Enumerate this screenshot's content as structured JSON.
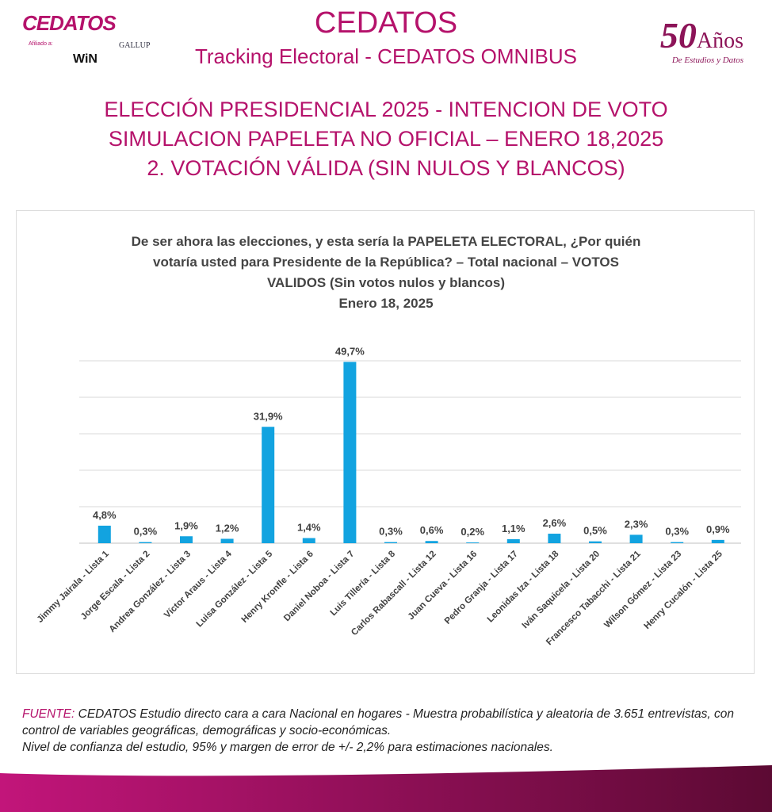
{
  "header": {
    "logo": "CEDATOS",
    "affiliate": "Afiliado a:",
    "gallup": "GALLUP",
    "win": "WiN",
    "brand": "CEDATOS",
    "tracking": "Tracking Electoral - CEDATOS OMNIBUS",
    "anniversary_number": "50",
    "anniversary_word": "Años",
    "anniversary_sub": "De Estudios y Datos"
  },
  "heading": [
    "ELECCIÓN PRESIDENCIAL 2025 - INTENCION DE VOTO",
    "SIMULACION PAPELETA NO OFICIAL – ENERO 18,2025",
    "2. VOTACIÓN VÁLIDA (SIN  NULOS Y BLANCOS)"
  ],
  "chart_data": {
    "type": "bar",
    "title_lines": [
      "De ser ahora las elecciones, y esta sería la PAPELETA ELECTORAL, ¿Por quién",
      "votaría usted para Presidente de la República? – Total nacional – VOTOS",
      "VALIDOS (Sin votos nulos y blancos)",
      "Enero 18, 2025"
    ],
    "categories": [
      "Jimmy Jairala - Lista 1",
      "Jorge Escala - Lista 2",
      "Andrea González - Lista 3",
      "Víctor Araus - Lista 4",
      "Luisa González - Lista 5",
      "Henry Kronfle - Lista 6",
      "Daniel Noboa - Lista 7",
      "Luis Tillería - Lista 8",
      "Carlos Rabascall - Lista 12",
      "Juan Cueva - Lista 16",
      "Pedro Granja - Lista 17",
      "Leonidas Iza - Lista 18",
      "Iván Saquicela - Lista 20",
      "Francesco Tabacchi - Lista 21",
      "Wilson Gómez - Lista 23",
      "Henry Cucalón - Lista 25"
    ],
    "values": [
      4.8,
      0.3,
      1.9,
      1.2,
      31.9,
      1.4,
      49.7,
      0.3,
      0.6,
      0.2,
      1.1,
      2.6,
      0.5,
      2.3,
      0.3,
      0.9
    ],
    "labels": [
      "4,8%",
      "0,3%",
      "1,9%",
      "1,2%",
      "31,9%",
      "1,4%",
      "49,7%",
      "0,3%",
      "0,6%",
      "0,2%",
      "1,1%",
      "2,6%",
      "0,5%",
      "2,3%",
      "0,3%",
      "0,9%"
    ],
    "ylim": [
      0,
      50
    ],
    "grid": true,
    "bar_color": "#12a3e0"
  },
  "footer": {
    "label": "FUENTE:",
    "text": " CEDATOS Estudio directo cara a cara Nacional en hogares - Muestra probabilística y aleatoria de 3.651 entrevistas, con control de variables geográficas, demográficas y socio-económicas.",
    "line3": "Nivel de confianza del estudio, 95% y margen de error de +/- 2,2% para estimaciones nacionales."
  },
  "colors": {
    "brand": "#b5126b",
    "wave": "#7a0c45"
  }
}
